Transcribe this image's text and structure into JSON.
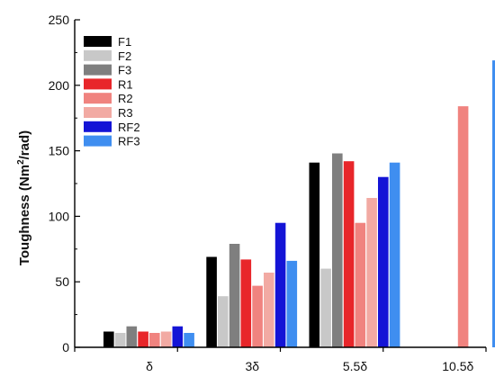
{
  "chart_data": {
    "type": "bar",
    "title": "",
    "xlabel": "",
    "ylabel": "Toughness (Nm²/rad)",
    "ylabel_parts": {
      "pre": "Toughness (Nm",
      "sup": "2",
      "post": "/rad)"
    },
    "ylim": [
      0,
      250
    ],
    "yticks": [
      0,
      50,
      100,
      150,
      200,
      250
    ],
    "grid": false,
    "legend_position": "top-left",
    "categories": [
      "δ",
      "3δ",
      "5.5δ",
      "10.5δ"
    ],
    "series": [
      {
        "name": "F1",
        "color": "#000000",
        "values": [
          12,
          69,
          141,
          null
        ]
      },
      {
        "name": "F2",
        "color": "#c8c8c8",
        "values": [
          11,
          39,
          60,
          null
        ]
      },
      {
        "name": "F3",
        "color": "#7f7f7f",
        "values": [
          16,
          79,
          148,
          null
        ]
      },
      {
        "name": "R1",
        "color": "#e8262a",
        "values": [
          12,
          67,
          142,
          null
        ]
      },
      {
        "name": "R2",
        "color": "#f0837f",
        "values": [
          11,
          47,
          95,
          184
        ]
      },
      {
        "name": "R3",
        "color": "#f2aaa3",
        "values": [
          12,
          57,
          114,
          null
        ]
      },
      {
        "name": "RF2",
        "color": "#1414d6",
        "values": [
          16,
          95,
          130,
          null
        ]
      },
      {
        "name": "RF3",
        "color": "#3f8ef0",
        "values": [
          11,
          66,
          141,
          219
        ]
      }
    ]
  }
}
